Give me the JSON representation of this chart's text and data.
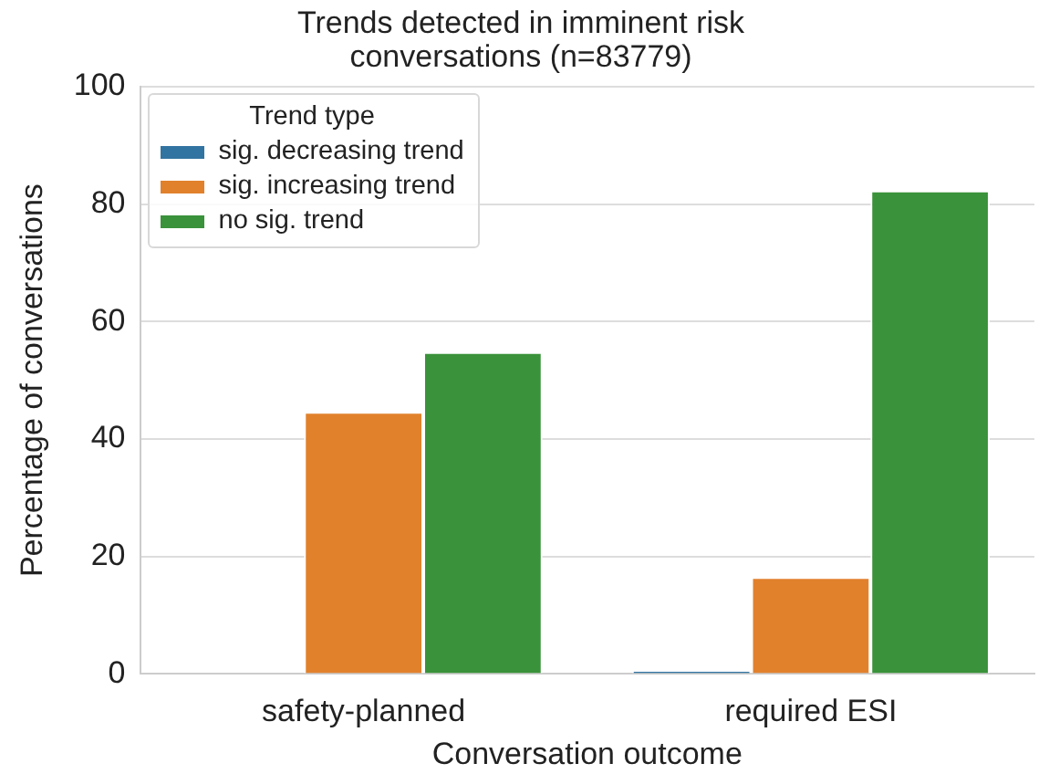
{
  "chart_data": {
    "type": "bar",
    "title": "Trends detected in imminent risk\nconversations (n=83779)",
    "xlabel": "Conversation outcome",
    "ylabel": "Percentage of conversations",
    "legend_title": "Trend type",
    "categories": [
      "safety-planned",
      "required ESI"
    ],
    "series": [
      {
        "name": "sig. decreasing trend",
        "color": "#3274a1",
        "values": [
          0,
          0.6
        ]
      },
      {
        "name": "sig. increasing trend",
        "color": "#e1812c",
        "values": [
          44.6,
          16.5
        ]
      },
      {
        "name": "no sig. trend",
        "color": "#3a923a",
        "values": [
          54.8,
          82.3
        ]
      }
    ],
    "ylim": [
      0,
      100
    ],
    "yticks": [
      0,
      20,
      40,
      60,
      80,
      100
    ],
    "grid": "y",
    "legend": "top left"
  }
}
